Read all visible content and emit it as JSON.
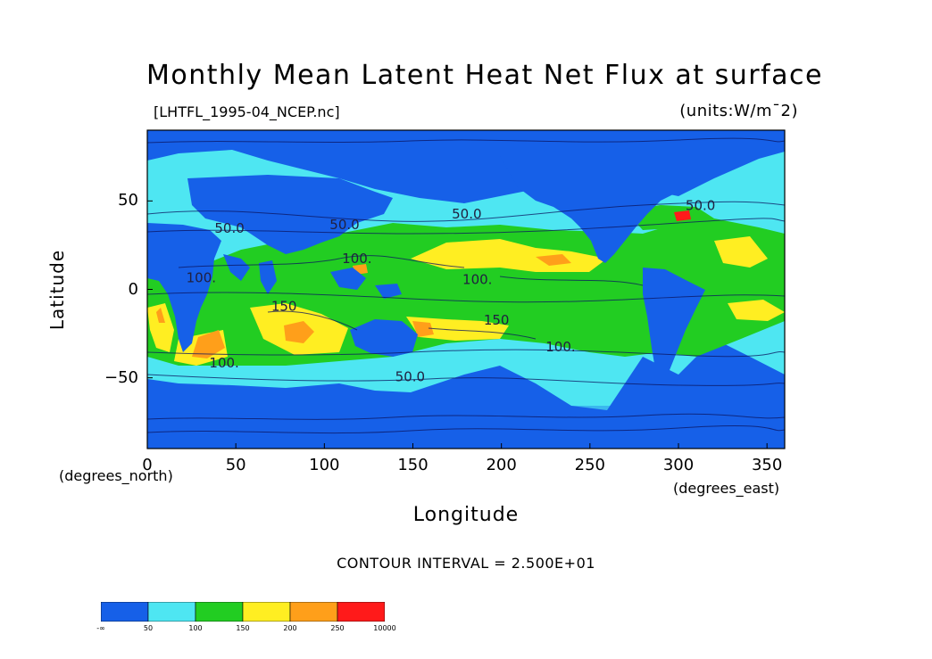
{
  "title": "Monthly Mean Latent Heat Net Flux at surface",
  "file_label": "[LHTFL_1995-04_NCEP.nc]",
  "units_label": "(units:W/m¯2)",
  "y_axis": {
    "label": "Latitude",
    "units": "(degrees_north)",
    "ticks": [
      "50",
      "0",
      "−50"
    ],
    "tick_values": [
      50,
      0,
      -50
    ],
    "range": [
      -90,
      90
    ]
  },
  "x_axis": {
    "label": "Longitude",
    "units": "(degrees_east)",
    "ticks": [
      "0",
      "50",
      "100",
      "150",
      "200",
      "250",
      "300",
      "350"
    ],
    "tick_values": [
      0,
      50,
      100,
      150,
      200,
      250,
      300,
      350
    ],
    "range": [
      0,
      360
    ]
  },
  "contour_interval": "CONTOUR INTERVAL = 2.500E+01",
  "contour_labels": [
    {
      "text": "50.0",
      "lon": 38,
      "lat": 32
    },
    {
      "text": "50.0",
      "lon": 103,
      "lat": 34
    },
    {
      "text": "50.0",
      "lon": 172,
      "lat": 40
    },
    {
      "text": "50.0",
      "lon": 304,
      "lat": 45
    },
    {
      "text": "100.",
      "lon": 110,
      "lat": 15
    },
    {
      "text": "100.",
      "lon": 22,
      "lat": 4
    },
    {
      "text": "100.",
      "lon": 178,
      "lat": 3
    },
    {
      "text": "150",
      "lon": 70,
      "lat": -12
    },
    {
      "text": "150",
      "lon": 190,
      "lat": -20
    },
    {
      "text": "100.",
      "lon": 225,
      "lat": -35
    },
    {
      "text": "100.",
      "lon": 35,
      "lat": -44
    },
    {
      "text": "50.0",
      "lon": 140,
      "lat": -52
    }
  ],
  "colorbar": {
    "labels": [
      "-∞",
      "50",
      "100",
      "150",
      "200",
      "250",
      "10000"
    ],
    "colors": [
      "#1660e8",
      "#4ee6f2",
      "#22cd22",
      "#ffee22",
      "#ff9f1a",
      "#ff1a1a"
    ]
  },
  "colors": {
    "land": "#1660e8",
    "band_50_100": "#4ee6f2",
    "band_100_150": "#22cd22",
    "band_150_200": "#ffee22",
    "band_200_250": "#ff9f1a",
    "band_250_plus": "#ff1a1a"
  }
}
